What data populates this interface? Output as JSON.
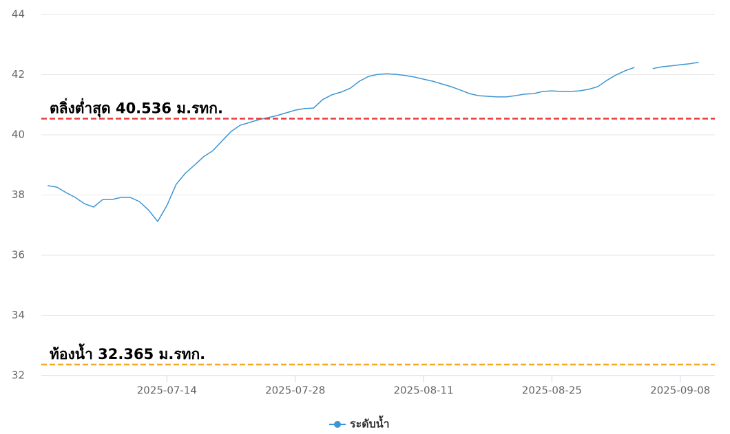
{
  "chart_data": {
    "type": "line",
    "x": [
      "2025-07-01",
      "2025-07-02",
      "2025-07-03",
      "2025-07-04",
      "2025-07-05",
      "2025-07-06",
      "2025-07-07",
      "2025-07-08",
      "2025-07-09",
      "2025-07-10",
      "2025-07-11",
      "2025-07-12",
      "2025-07-13",
      "2025-07-14",
      "2025-07-15",
      "2025-07-16",
      "2025-07-17",
      "2025-07-18",
      "2025-07-19",
      "2025-07-20",
      "2025-07-21",
      "2025-07-22",
      "2025-07-23",
      "2025-07-24",
      "2025-07-25",
      "2025-07-26",
      "2025-07-27",
      "2025-07-28",
      "2025-07-29",
      "2025-07-30",
      "2025-07-31",
      "2025-08-01",
      "2025-08-02",
      "2025-08-03",
      "2025-08-04",
      "2025-08-05",
      "2025-08-06",
      "2025-08-07",
      "2025-08-08",
      "2025-08-09",
      "2025-08-10",
      "2025-08-11",
      "2025-08-12",
      "2025-08-13",
      "2025-08-14",
      "2025-08-15",
      "2025-08-16",
      "2025-08-17",
      "2025-08-18",
      "2025-08-19",
      "2025-08-20",
      "2025-08-21",
      "2025-08-22",
      "2025-08-23",
      "2025-08-24",
      "2025-08-25",
      "2025-08-26",
      "2025-08-27",
      "2025-08-28",
      "2025-08-29",
      "2025-08-30",
      "2025-08-31",
      "2025-09-01",
      "2025-09-02",
      "2025-09-03",
      "2025-09-04",
      "2025-09-05",
      "2025-09-06",
      "2025-09-07",
      "2025-09-08",
      "2025-09-09",
      "2025-09-10"
    ],
    "series": [
      {
        "name": "ระดับน้ำ",
        "color": "#3d96d3",
        "values": [
          38.31,
          38.26,
          38.08,
          37.92,
          37.71,
          37.6,
          37.85,
          37.85,
          37.92,
          37.92,
          37.78,
          37.5,
          37.12,
          37.65,
          38.35,
          38.72,
          38.99,
          39.27,
          39.47,
          39.79,
          40.11,
          40.32,
          40.41,
          40.5,
          40.57,
          40.64,
          40.73,
          40.82,
          40.87,
          40.89,
          41.17,
          41.33,
          41.42,
          41.55,
          41.78,
          41.94,
          42.01,
          42.03,
          42.01,
          41.97,
          41.92,
          41.85,
          41.78,
          41.69,
          41.6,
          41.49,
          41.37,
          41.3,
          41.28,
          41.26,
          41.26,
          41.3,
          41.35,
          41.37,
          41.44,
          41.46,
          41.44,
          41.44,
          41.46,
          41.51,
          41.6,
          41.81,
          41.99,
          42.13,
          42.24,
          null,
          42.2,
          42.26,
          42.29,
          42.33,
          42.36,
          42.41
        ]
      }
    ],
    "xlim": [
      "2025-06-30",
      "2025-09-12"
    ],
    "xticks": [
      "2025-07-14",
      "2025-07-28",
      "2025-08-11",
      "2025-08-25",
      "2025-09-08"
    ],
    "ylim": [
      32,
      44
    ],
    "yticks": [
      32,
      34,
      36,
      38,
      40,
      42,
      44
    ],
    "grid": true,
    "reference_lines": [
      {
        "label": "ตลิ่งต่ำสุด 40.536 ม.รทก.",
        "value": 40.536,
        "color": "#e8383d"
      },
      {
        "label": "ท้องน้ำ 32.365 ม.รทก.",
        "value": 32.365,
        "color": "#f5a623"
      }
    ],
    "legend": "bottom"
  }
}
